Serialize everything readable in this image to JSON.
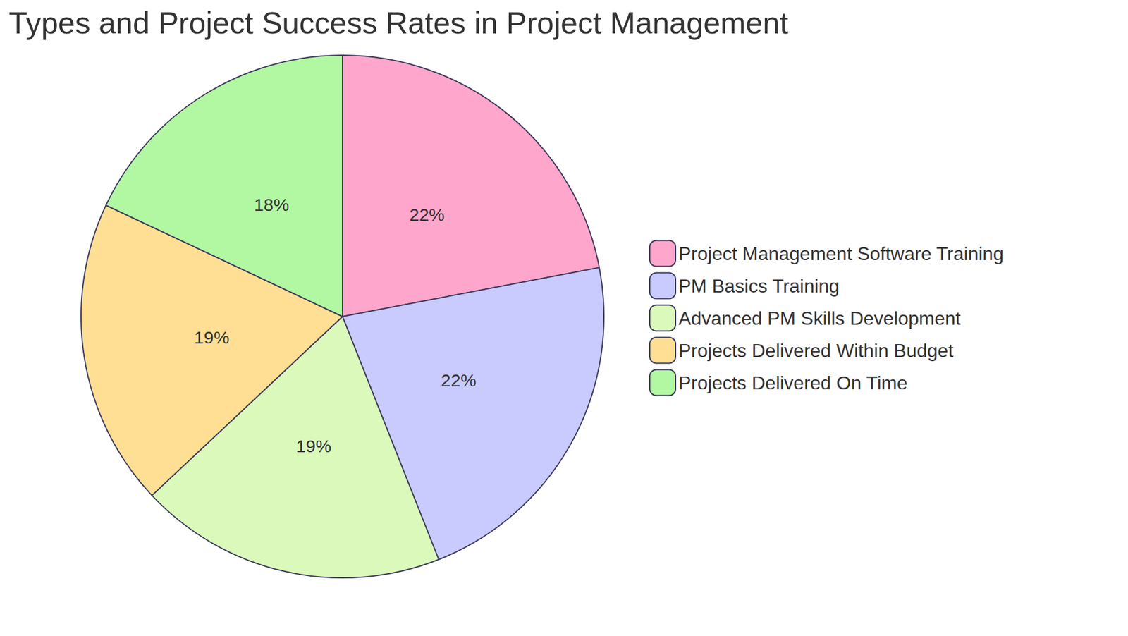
{
  "chart_data": {
    "type": "pie",
    "title": "Types and Project Success Rates in Project Management",
    "categories": [
      "Project Management Software Training",
      "PM Basics Training",
      "Advanced PM Skills Development",
      "Projects Delivered Within Budget",
      "Projects Delivered On Time"
    ],
    "values": [
      22,
      22,
      19,
      19,
      18
    ],
    "value_labels": [
      "22%",
      "22%",
      "19%",
      "19%",
      "18%"
    ],
    "colors": [
      "#ffa6cd",
      "#c9cbff",
      "#dbf9bb",
      "#fedf94",
      "#b2f7a1"
    ],
    "data_labels": true,
    "legend": "right"
  }
}
